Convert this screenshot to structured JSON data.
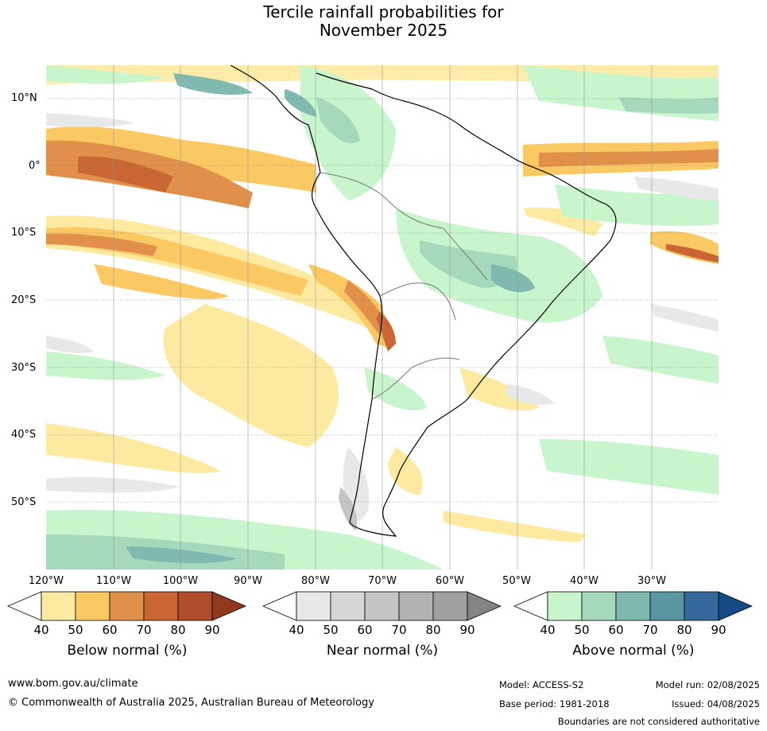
{
  "title_line1": "Tercile rainfall probabilities for",
  "title_line2": "November 2025",
  "lat_labels": [
    "10°N",
    "0°",
    "10°S",
    "20°S",
    "30°S",
    "40°S",
    "50°S"
  ],
  "lon_labels": [
    "120°W",
    "110°W",
    "100°W",
    "90°W",
    "80°W",
    "70°W",
    "60°W",
    "50°W",
    "40°W",
    "30°W"
  ],
  "legends": [
    {
      "title": "Below normal (%)",
      "ticks": [
        "40",
        "50",
        "60",
        "70",
        "80",
        "90"
      ],
      "colors": [
        "#ffffff",
        "#fdeaa0",
        "#fbc964",
        "#e0904a",
        "#c96634",
        "#b04e2b",
        "#8f3a1e"
      ]
    },
    {
      "title": "Near normal (%)",
      "ticks": [
        "40",
        "50",
        "60",
        "70",
        "80",
        "90"
      ],
      "colors": [
        "#ffffff",
        "#e8e8e8",
        "#d6d6d6",
        "#c4c4c4",
        "#b2b2b2",
        "#a0a0a0",
        "#848484"
      ]
    },
    {
      "title": "Above normal (%)",
      "ticks": [
        "40",
        "50",
        "60",
        "70",
        "80",
        "90"
      ],
      "colors": [
        "#ffffff",
        "#c8f5cc",
        "#a6d8bb",
        "#80b9b0",
        "#5b95a2",
        "#35699e",
        "#154b85"
      ]
    }
  ],
  "footer": {
    "url": "www.bom.gov.au/climate",
    "copyright": "© Commonwealth of Australia 2025, Australian Bureau of Meteorology",
    "model": "Model: ACCESS-S2",
    "base_period": "Base period: 1981-2018",
    "model_run": "Model run: 02/08/2025",
    "issued": "Issued: 04/08/2025",
    "disclaimer": "Boundaries are not considered authoritative"
  }
}
